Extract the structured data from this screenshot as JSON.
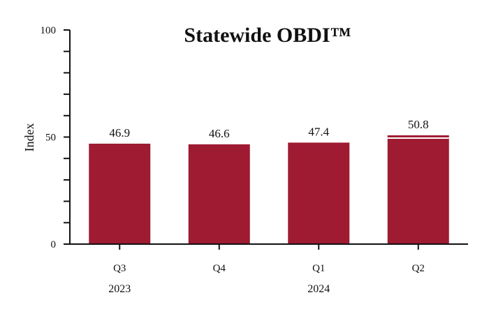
{
  "chart_data": {
    "type": "bar",
    "title": "Statewide OBDI™",
    "ylabel": "Index",
    "xlabel": "",
    "ylim": [
      0,
      100
    ],
    "y_major_ticks": [
      0,
      50,
      100
    ],
    "y_minor_step": 10,
    "grid": false,
    "legend": "none",
    "categories": [
      "Q3",
      "Q4",
      "Q1",
      "Q2"
    ],
    "year_groups": [
      {
        "label": "2023",
        "under": "Q3"
      },
      {
        "label": "2024",
        "under": "Q1"
      }
    ],
    "values": [
      46.9,
      46.6,
      47.4,
      50.8
    ],
    "value_labels": [
      "46.9",
      "46.6",
      "47.4",
      "50.8"
    ],
    "bar_color": "#9e1b32",
    "outlined_last_bar": true
  }
}
